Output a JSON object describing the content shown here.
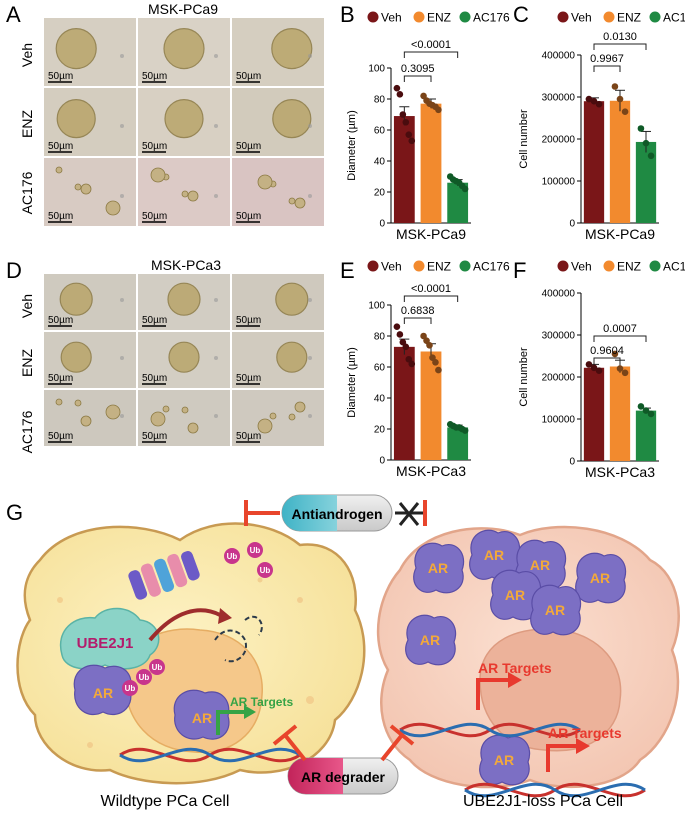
{
  "panels": {
    "A": {
      "letter": "A",
      "title": "MSK-PCa9",
      "rows": [
        "Veh",
        "ENZ",
        "AC176"
      ],
      "scale": "50µm"
    },
    "D": {
      "letter": "D",
      "title": "MSK-PCa3",
      "rows": [
        "Veh",
        "ENZ",
        "AC176"
      ],
      "scale": "50µm"
    },
    "G": {
      "letter": "G"
    }
  },
  "legend": [
    "Veh",
    "ENZ",
    "AC176"
  ],
  "colors": {
    "Veh": "#7a1618",
    "ENZ": "#f28a2e",
    "AC176": "#1f8a43"
  },
  "chart_data": [
    {
      "panel": "B",
      "type": "bar",
      "xlabel": "MSK-PCa9",
      "ylabel": "Diameter (µm)",
      "ylim": [
        0,
        100
      ],
      "yticks": [
        "0",
        "20",
        "40",
        "60",
        "80",
        "100"
      ],
      "categories": [
        "Veh",
        "ENZ",
        "AC176"
      ],
      "values": [
        69,
        77,
        26
      ],
      "errors": [
        6,
        3,
        2
      ],
      "points": [
        [
          87,
          83,
          70,
          65,
          57,
          53
        ],
        [
          82,
          79,
          77,
          76,
          75,
          73
        ],
        [
          30,
          28,
          27,
          26,
          24,
          22
        ]
      ],
      "annotations": [
        {
          "text": "0.3095",
          "from": 0,
          "to": 1
        },
        {
          "text": "<0.0001",
          "from": 0,
          "to": 2
        }
      ]
    },
    {
      "panel": "C",
      "type": "bar",
      "xlabel": "MSK-PCa9",
      "ylabel": "Cell number",
      "ylim": [
        0,
        400000
      ],
      "yticks": [
        "0",
        "100000",
        "200000",
        "300000",
        "400000"
      ],
      "categories": [
        "Veh",
        "ENZ",
        "AC176"
      ],
      "values": [
        290000,
        291000,
        193000
      ],
      "errors": [
        8000,
        25000,
        25000
      ],
      "points": [
        [
          295000,
          290000,
          283000
        ],
        [
          325000,
          295000,
          265000
        ],
        [
          225000,
          190000,
          160000
        ]
      ],
      "annotations": [
        {
          "text": "0.9967",
          "from": 0,
          "to": 1
        },
        {
          "text": "0.0130",
          "from": 0,
          "to": 2
        }
      ]
    },
    {
      "panel": "E",
      "type": "bar",
      "xlabel": "MSK-PCa3",
      "ylabel": "Diameter (µm)",
      "ylim": [
        0,
        100
      ],
      "yticks": [
        "0",
        "20",
        "40",
        "60",
        "80",
        "100"
      ],
      "categories": [
        "Veh",
        "ENZ",
        "AC176"
      ],
      "values": [
        73,
        70,
        21
      ],
      "errors": [
        5,
        5,
        1.5
      ],
      "points": [
        [
          86,
          81,
          76,
          73,
          65,
          62
        ],
        [
          80,
          77,
          74,
          66,
          63,
          58
        ],
        [
          23,
          22,
          21,
          21,
          20,
          19
        ]
      ],
      "annotations": [
        {
          "text": "0.6838",
          "from": 0,
          "to": 1
        },
        {
          "text": "<0.0001",
          "from": 0,
          "to": 2
        }
      ]
    },
    {
      "panel": "F",
      "type": "bar",
      "xlabel": "MSK-PCa3",
      "ylabel": "Cell number",
      "ylim": [
        0,
        400000
      ],
      "yticks": [
        "0",
        "100000",
        "200000",
        "300000",
        "400000"
      ],
      "categories": [
        "Veh",
        "ENZ",
        "AC176"
      ],
      "values": [
        222000,
        225000,
        120000
      ],
      "errors": [
        8000,
        15000,
        6000
      ],
      "points": [
        [
          230000,
          222000,
          215000
        ],
        [
          255000,
          220000,
          210000
        ],
        [
          130000,
          120000,
          112000
        ]
      ],
      "annotations": [
        {
          "text": "0.9604",
          "from": 0,
          "to": 1
        },
        {
          "text": "0.0007",
          "from": 0,
          "to": 2
        }
      ]
    }
  ],
  "schematic": {
    "antiandrogen": "Antiandrogen",
    "ar_degrader": "AR degrader",
    "ube2j1": "UBE2J1",
    "ar": "AR",
    "ub": "Ub",
    "ar_targets": "AR Targets",
    "wt_cell": "Wildtype PCa Cell",
    "loss_cell": "UBE2J1-loss PCa Cell"
  }
}
